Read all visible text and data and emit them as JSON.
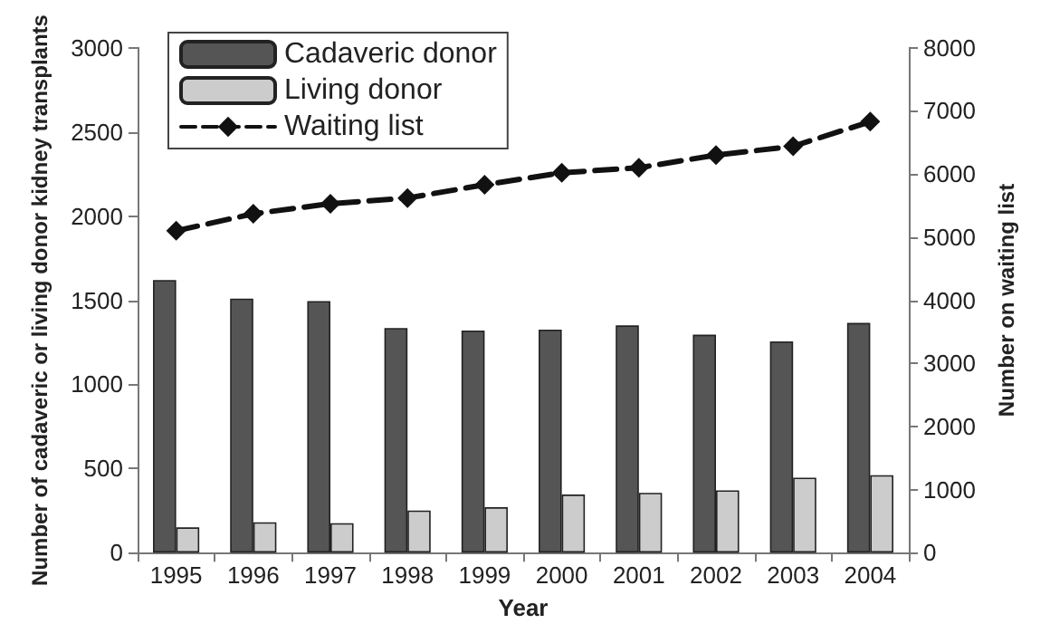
{
  "chart_data": {
    "type": "bar",
    "xlabel": "Year",
    "ylabel": "Number of cadaveric or living donor kidney transplants",
    "y2label": "Number on waiting list",
    "categories": [
      "1995",
      "1996",
      "1997",
      "1998",
      "1999",
      "2000",
      "2001",
      "2002",
      "2003",
      "2004"
    ],
    "series": [
      {
        "name": "Cadaveric donor",
        "color": "#555555",
        "values": [
          1620,
          1510,
          1495,
          1335,
          1320,
          1325,
          1350,
          1295,
          1255,
          1365
        ]
      },
      {
        "name": "Living donor",
        "color": "#cccccc",
        "values": [
          150,
          180,
          175,
          250,
          270,
          345,
          355,
          370,
          445,
          460
        ]
      },
      {
        "name": "Waiting list",
        "type": "line",
        "axis": "y2",
        "color": "#111111",
        "marker": "diamond",
        "line_style": "dashed",
        "values": [
          5100,
          5370,
          5530,
          5620,
          5830,
          6020,
          6100,
          6300,
          6440,
          6830
        ]
      }
    ],
    "ylim": [
      0,
      3000
    ],
    "yticks": [
      0,
      500,
      1000,
      1500,
      2000,
      2500,
      3000
    ],
    "y2lim": [
      0,
      8000
    ],
    "y2ticks": [
      0,
      1000,
      2000,
      3000,
      4000,
      5000,
      6000,
      7000,
      8000
    ],
    "grid": false,
    "legend": "top left"
  }
}
